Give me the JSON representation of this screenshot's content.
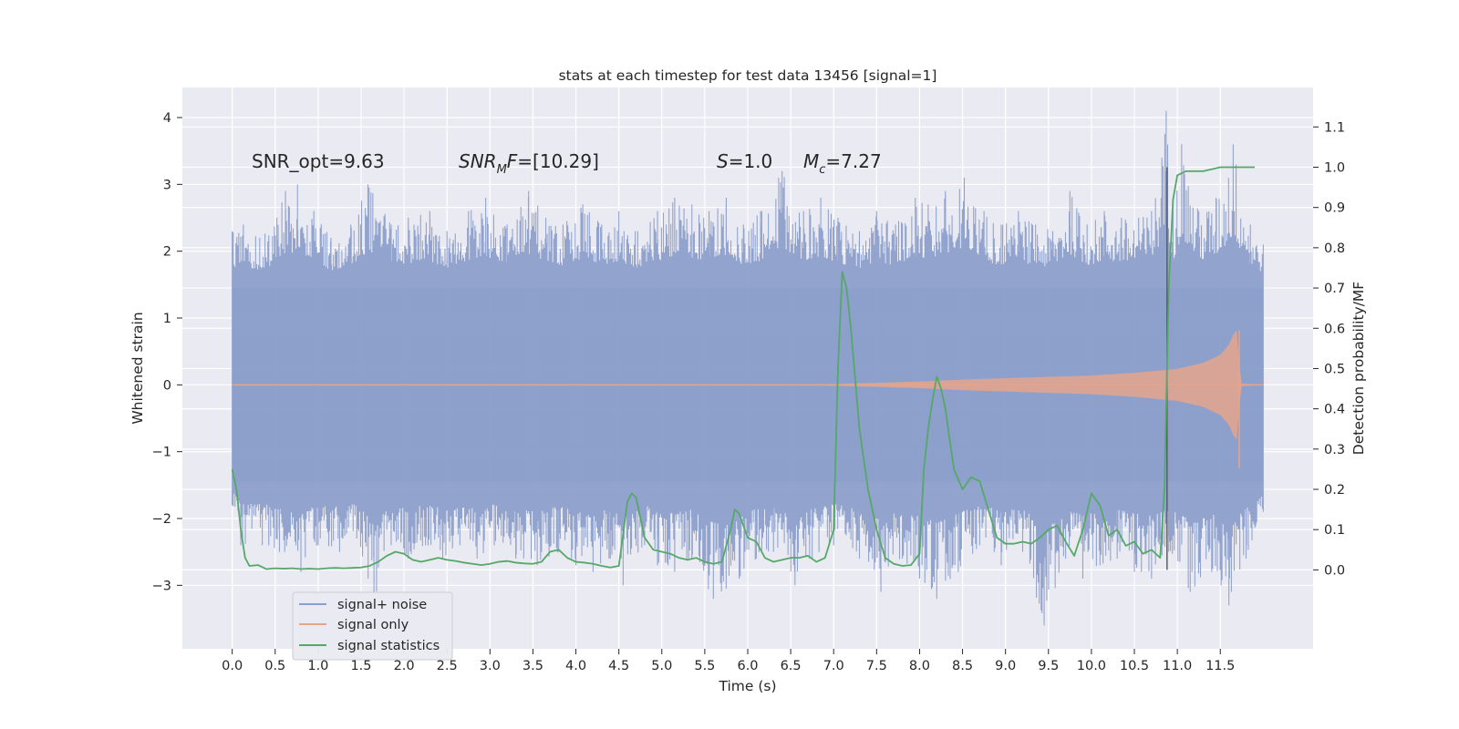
{
  "chart_data": {
    "type": "line",
    "title": "stats at each timestep for test data 13456 [signal=1]",
    "xlabel": "Time (s)",
    "ylabel": "Whitened strain",
    "y2label": "Detection probability/MF",
    "xlim": [
      -0.58,
      12.58
    ],
    "ylim": [
      -3.95,
      4.45
    ],
    "y2lim": [
      -0.196,
      1.198
    ],
    "x_ticks": [
      "0.0",
      "0.5",
      "1.0",
      "1.5",
      "2.0",
      "2.5",
      "3.0",
      "3.5",
      "4.0",
      "4.5",
      "5.0",
      "5.5",
      "6.0",
      "6.5",
      "7.0",
      "7.5",
      "8.0",
      "8.5",
      "9.0",
      "9.5",
      "10.0",
      "10.5",
      "11.0",
      "11.5"
    ],
    "y_ticks": [
      "−3",
      "−2",
      "−1",
      "0",
      "1",
      "2",
      "3",
      "4"
    ],
    "y2_ticks": [
      "0.0",
      "0.1",
      "0.2",
      "0.3",
      "0.4",
      "0.5",
      "0.6",
      "0.7",
      "0.8",
      "0.9",
      "1.0",
      "1.1"
    ],
    "grid": true,
    "legend_position": "lower-left",
    "annotations": {
      "snr_opt": "SNR_opt=9.63",
      "snr_mf_main": "SNR",
      "snr_mf_sub": "M",
      "snr_mf_rest": "F=[10.29]",
      "s_main": "S",
      "s_rest": "=1.0",
      "mc_main": "M",
      "mc_sub": "c",
      "mc_rest": "=7.27"
    },
    "vertical_marker_x": 10.88,
    "series": [
      {
        "name": "signal+ noise",
        "axis": "left",
        "color": "#8da0cb",
        "t_range": [
          0.0,
          12.0
        ],
        "core_band": [
          -1.45,
          1.45
        ],
        "peaks_hi": [
          [
            0.0,
            2.3
          ],
          [
            0.13,
            2.4
          ],
          [
            0.32,
            2.2
          ],
          [
            0.52,
            2.5
          ],
          [
            0.62,
            2.9
          ],
          [
            0.76,
            3.0
          ],
          [
            0.95,
            2.6
          ],
          [
            1.15,
            2.2
          ],
          [
            1.38,
            2.4
          ],
          [
            1.58,
            3.0
          ],
          [
            1.85,
            2.4
          ],
          [
            2.05,
            2.5
          ],
          [
            2.3,
            2.6
          ],
          [
            2.5,
            2.3
          ],
          [
            2.75,
            2.6
          ],
          [
            2.95,
            2.8
          ],
          [
            3.2,
            2.4
          ],
          [
            3.45,
            2.9
          ],
          [
            3.65,
            2.5
          ],
          [
            3.85,
            2.4
          ],
          [
            4.08,
            2.7
          ],
          [
            4.3,
            2.4
          ],
          [
            4.5,
            2.6
          ],
          [
            4.72,
            2.3
          ],
          [
            4.95,
            2.6
          ],
          [
            5.15,
            2.8
          ],
          [
            5.35,
            2.7
          ],
          [
            5.55,
            2.6
          ],
          [
            5.75,
            2.8
          ],
          [
            5.95,
            2.4
          ],
          [
            6.15,
            2.6
          ],
          [
            6.4,
            3.2
          ],
          [
            6.65,
            2.6
          ],
          [
            6.85,
            2.8
          ],
          [
            7.05,
            2.5
          ],
          [
            7.3,
            2.3
          ],
          [
            7.5,
            2.6
          ],
          [
            7.72,
            2.4
          ],
          [
            7.95,
            2.8
          ],
          [
            8.1,
            2.7
          ],
          [
            8.3,
            2.9
          ],
          [
            8.52,
            3.1
          ],
          [
            8.75,
            2.6
          ],
          [
            8.95,
            2.4
          ],
          [
            9.15,
            2.6
          ],
          [
            9.35,
            2.4
          ],
          [
            9.55,
            2.3
          ],
          [
            9.75,
            2.9
          ],
          [
            9.95,
            2.4
          ],
          [
            10.15,
            2.6
          ],
          [
            10.35,
            2.5
          ],
          [
            10.55,
            2.5
          ],
          [
            10.7,
            2.6
          ],
          [
            10.82,
            3.4
          ],
          [
            10.87,
            4.1
          ],
          [
            10.95,
            2.6
          ],
          [
            11.05,
            3.6
          ],
          [
            11.25,
            2.6
          ],
          [
            11.45,
            2.8
          ],
          [
            11.65,
            3.6
          ],
          [
            11.85,
            2.4
          ],
          [
            12.0,
            2.1
          ]
        ],
        "peaks_lo": [
          [
            0.0,
            -1.8
          ],
          [
            0.1,
            -2.4
          ],
          [
            0.35,
            -2.4
          ],
          [
            0.55,
            -2.5
          ],
          [
            0.8,
            -2.8
          ],
          [
            1.0,
            -2.4
          ],
          [
            1.25,
            -2.5
          ],
          [
            1.45,
            -2.3
          ],
          [
            1.65,
            -3.3
          ],
          [
            1.85,
            -2.4
          ],
          [
            2.05,
            -2.6
          ],
          [
            2.25,
            -2.4
          ],
          [
            2.45,
            -2.6
          ],
          [
            2.65,
            -2.4
          ],
          [
            2.85,
            -2.6
          ],
          [
            3.05,
            -2.4
          ],
          [
            3.3,
            -2.6
          ],
          [
            3.55,
            -2.7
          ],
          [
            3.8,
            -2.5
          ],
          [
            4.0,
            -2.7
          ],
          [
            4.2,
            -2.8
          ],
          [
            4.4,
            -2.6
          ],
          [
            4.55,
            -3.0
          ],
          [
            4.8,
            -2.4
          ],
          [
            4.95,
            -2.7
          ],
          [
            5.15,
            -2.8
          ],
          [
            5.35,
            -2.6
          ],
          [
            5.6,
            -3.2
          ],
          [
            5.9,
            -2.9
          ],
          [
            6.1,
            -2.6
          ],
          [
            6.3,
            -2.5
          ],
          [
            6.55,
            -3.0
          ],
          [
            6.75,
            -2.6
          ],
          [
            7.0,
            -2.4
          ],
          [
            7.3,
            -2.6
          ],
          [
            7.55,
            -3.1
          ],
          [
            7.8,
            -2.6
          ],
          [
            8.0,
            -2.9
          ],
          [
            8.2,
            -3.2
          ],
          [
            8.45,
            -2.8
          ],
          [
            8.7,
            -2.4
          ],
          [
            8.95,
            -2.7
          ],
          [
            9.2,
            -2.5
          ],
          [
            9.45,
            -3.6
          ],
          [
            9.7,
            -2.6
          ],
          [
            9.9,
            -2.9
          ],
          [
            10.1,
            -2.7
          ],
          [
            10.3,
            -2.6
          ],
          [
            10.5,
            -2.8
          ],
          [
            10.7,
            -2.9
          ],
          [
            10.9,
            -2.5
          ],
          [
            11.15,
            -3.1
          ],
          [
            11.4,
            -2.8
          ],
          [
            11.6,
            -3.3
          ],
          [
            11.8,
            -2.6
          ],
          [
            12.0,
            -1.9
          ]
        ]
      },
      {
        "name": "signal only",
        "axis": "left",
        "color": "#e5a58b",
        "envelope": [
          [
            6.9,
            0.01
          ],
          [
            7.5,
            0.03
          ],
          [
            8.0,
            0.05
          ],
          [
            8.5,
            0.08
          ],
          [
            9.0,
            0.1
          ],
          [
            9.5,
            0.12
          ],
          [
            10.0,
            0.14
          ],
          [
            10.5,
            0.18
          ],
          [
            11.0,
            0.24
          ],
          [
            11.3,
            0.33
          ],
          [
            11.5,
            0.45
          ],
          [
            11.6,
            0.6
          ],
          [
            11.65,
            0.75
          ],
          [
            11.69,
            0.82
          ],
          [
            11.72,
            0.3
          ],
          [
            11.75,
            0.02
          ],
          [
            12.0,
            0.0
          ]
        ],
        "chirp_end": 11.72
      },
      {
        "name": "signal statistics",
        "axis": "right",
        "color": "#55a868",
        "x": [
          0.0,
          0.05,
          0.1,
          0.15,
          0.2,
          0.3,
          0.4,
          0.5,
          0.6,
          0.7,
          0.8,
          0.9,
          1.0,
          1.1,
          1.2,
          1.3,
          1.4,
          1.5,
          1.6,
          1.7,
          1.8,
          1.9,
          2.0,
          2.1,
          2.2,
          2.3,
          2.4,
          2.5,
          2.6,
          2.7,
          2.8,
          2.9,
          3.0,
          3.1,
          3.2,
          3.3,
          3.4,
          3.5,
          3.6,
          3.7,
          3.8,
          3.9,
          4.0,
          4.1,
          4.2,
          4.3,
          4.4,
          4.5,
          4.6,
          4.65,
          4.7,
          4.8,
          4.9,
          5.0,
          5.1,
          5.2,
          5.3,
          5.4,
          5.5,
          5.6,
          5.7,
          5.8,
          5.85,
          5.9,
          6.0,
          6.1,
          6.2,
          6.3,
          6.4,
          6.5,
          6.6,
          6.7,
          6.8,
          6.9,
          7.0,
          7.05,
          7.1,
          7.15,
          7.2,
          7.3,
          7.4,
          7.5,
          7.6,
          7.7,
          7.8,
          7.9,
          8.0,
          8.05,
          8.1,
          8.15,
          8.2,
          8.25,
          8.3,
          8.4,
          8.5,
          8.6,
          8.7,
          8.8,
          8.9,
          9.0,
          9.1,
          9.2,
          9.3,
          9.4,
          9.5,
          9.6,
          9.7,
          9.8,
          9.9,
          10.0,
          10.1,
          10.2,
          10.3,
          10.4,
          10.5,
          10.6,
          10.7,
          10.8,
          10.85,
          10.9,
          10.95,
          11.0,
          11.1,
          11.2,
          11.3,
          11.4,
          11.5,
          11.6,
          11.7,
          11.8,
          11.9
        ],
        "values": [
          0.25,
          0.2,
          0.1,
          0.03,
          0.01,
          0.012,
          0.002,
          0.004,
          0.003,
          0.004,
          0.002,
          0.003,
          0.002,
          0.004,
          0.005,
          0.004,
          0.005,
          0.006,
          0.01,
          0.02,
          0.035,
          0.045,
          0.04,
          0.025,
          0.02,
          0.025,
          0.03,
          0.025,
          0.022,
          0.018,
          0.015,
          0.012,
          0.015,
          0.02,
          0.022,
          0.018,
          0.016,
          0.015,
          0.02,
          0.045,
          0.05,
          0.03,
          0.02,
          0.018,
          0.015,
          0.01,
          0.006,
          0.01,
          0.17,
          0.19,
          0.18,
          0.08,
          0.05,
          0.045,
          0.04,
          0.03,
          0.025,
          0.03,
          0.02,
          0.015,
          0.02,
          0.1,
          0.15,
          0.14,
          0.08,
          0.07,
          0.03,
          0.02,
          0.025,
          0.03,
          0.03,
          0.035,
          0.02,
          0.03,
          0.1,
          0.5,
          0.74,
          0.7,
          0.6,
          0.35,
          0.2,
          0.1,
          0.03,
          0.015,
          0.01,
          0.012,
          0.04,
          0.25,
          0.35,
          0.42,
          0.48,
          0.45,
          0.4,
          0.25,
          0.2,
          0.23,
          0.22,
          0.15,
          0.08,
          0.065,
          0.065,
          0.07,
          0.065,
          0.08,
          0.1,
          0.11,
          0.07,
          0.035,
          0.1,
          0.19,
          0.16,
          0.085,
          0.1,
          0.06,
          0.07,
          0.04,
          0.05,
          0.03,
          0.2,
          0.7,
          0.92,
          0.98,
          0.99,
          0.99,
          0.99,
          0.995,
          1.0,
          1.0,
          1.0,
          1.0,
          1.0
        ]
      }
    ]
  }
}
